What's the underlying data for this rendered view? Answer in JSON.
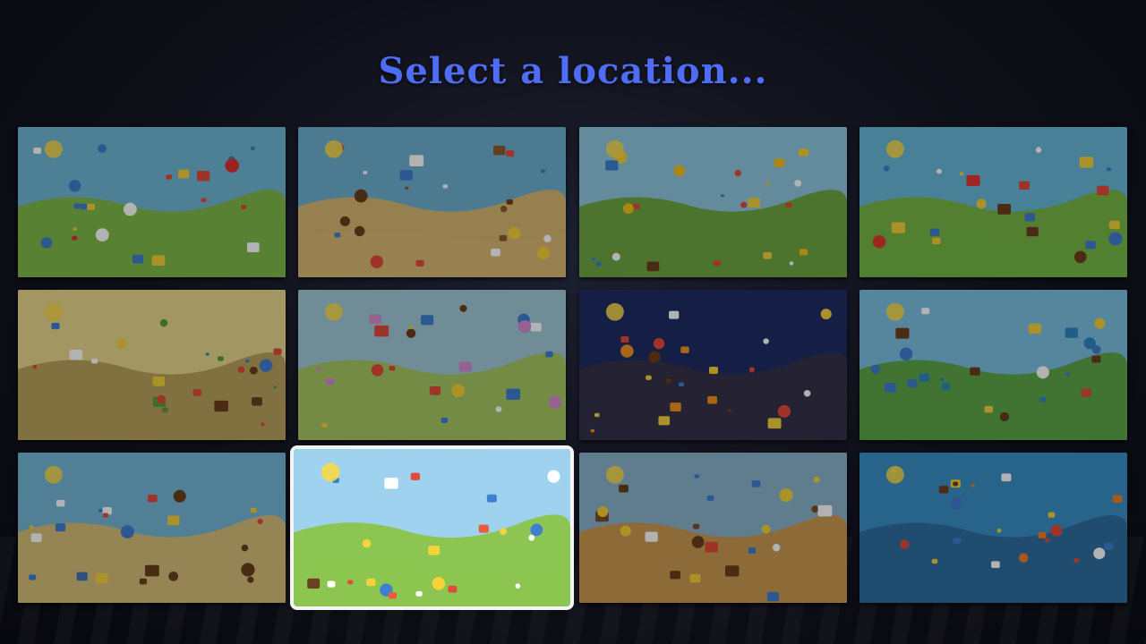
{
  "title": "Select a location...",
  "selected_index": 9,
  "locations": [
    {
      "id": "city-roads",
      "sky": "#6fb6d6",
      "ground": "#7fb94a",
      "accent": "#d9342b"
    },
    {
      "id": "vikings",
      "sky": "#6eb0d0",
      "ground": "#d9b873",
      "accent": "#8a5a2c"
    },
    {
      "id": "savanna",
      "sky": "#8fc7e0",
      "ground": "#6fa643",
      "accent": "#f2c21b"
    },
    {
      "id": "circus",
      "sky": "#66b8d8",
      "ground": "#76b845",
      "accent": "#e2362e"
    },
    {
      "id": "dinosaurs",
      "sky": "#e8d78d",
      "ground": "#b9a35c",
      "accent": "#5c9a3e"
    },
    {
      "id": "fairy-castle",
      "sky": "#9fc9d9",
      "ground": "#a7c765",
      "accent": "#d58ccf"
    },
    {
      "id": "halloween",
      "sky": "#1f2b62",
      "ground": "#35324a",
      "accent": "#f19223"
    },
    {
      "id": "lake-camping",
      "sky": "#7cc0e2",
      "ground": "#5ea64a",
      "accent": "#2e87c4"
    },
    {
      "id": "pirates",
      "sky": "#74b6d6",
      "ground": "#d6bf7a",
      "accent": "#4276b8"
    },
    {
      "id": "playground",
      "sky": "#9fd2ef",
      "ground": "#8cc552",
      "accent": "#ef5a3a"
    },
    {
      "id": "wild-west",
      "sky": "#8ab3cc",
      "ground": "#c99a52",
      "accent": "#7a4e28"
    },
    {
      "id": "underwater",
      "sky": "#3a8fc6",
      "ground": "#2f6f9f",
      "accent": "#f17d2c"
    }
  ]
}
